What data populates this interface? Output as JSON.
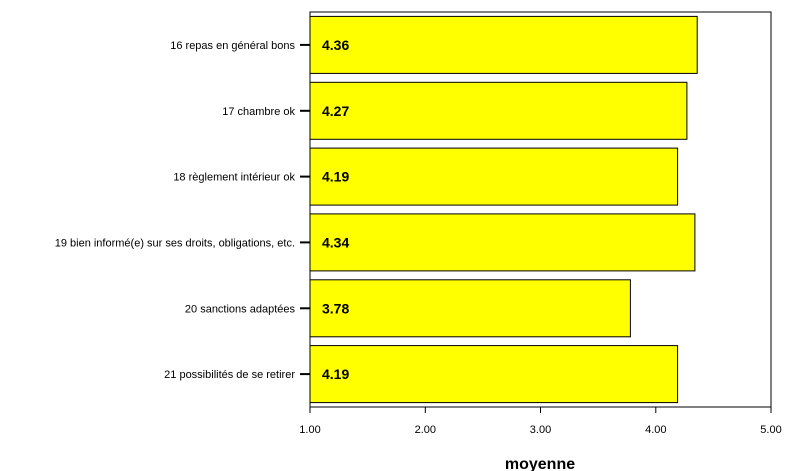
{
  "chart_data": {
    "type": "bar",
    "orientation": "horizontal",
    "categories": [
      "16 repas en général bons",
      "17 chambre ok",
      "18 règlement intérieur ok",
      "19 bien informé(e) sur ses droits, obligations, etc.",
      "20 sanctions adaptées",
      "21 possibilités de se retirer"
    ],
    "values": [
      4.36,
      4.27,
      4.19,
      4.34,
      3.78,
      4.19
    ],
    "data_labels": [
      "4.36",
      "4.27",
      "4.19",
      "4.34",
      "3.78",
      "4.19"
    ],
    "xlabel": "moyenne",
    "ylabel": "",
    "xlim": [
      1.0,
      5.0
    ],
    "x_ticks": [
      1.0,
      2.0,
      3.0,
      4.0,
      5.0
    ],
    "x_tick_labels": [
      "1.00",
      "2.00",
      "3.00",
      "4.00",
      "5.00"
    ],
    "grid": false,
    "legend": "none",
    "bar_color": "#FFFF00",
    "bar_edge_color": "#000000"
  }
}
